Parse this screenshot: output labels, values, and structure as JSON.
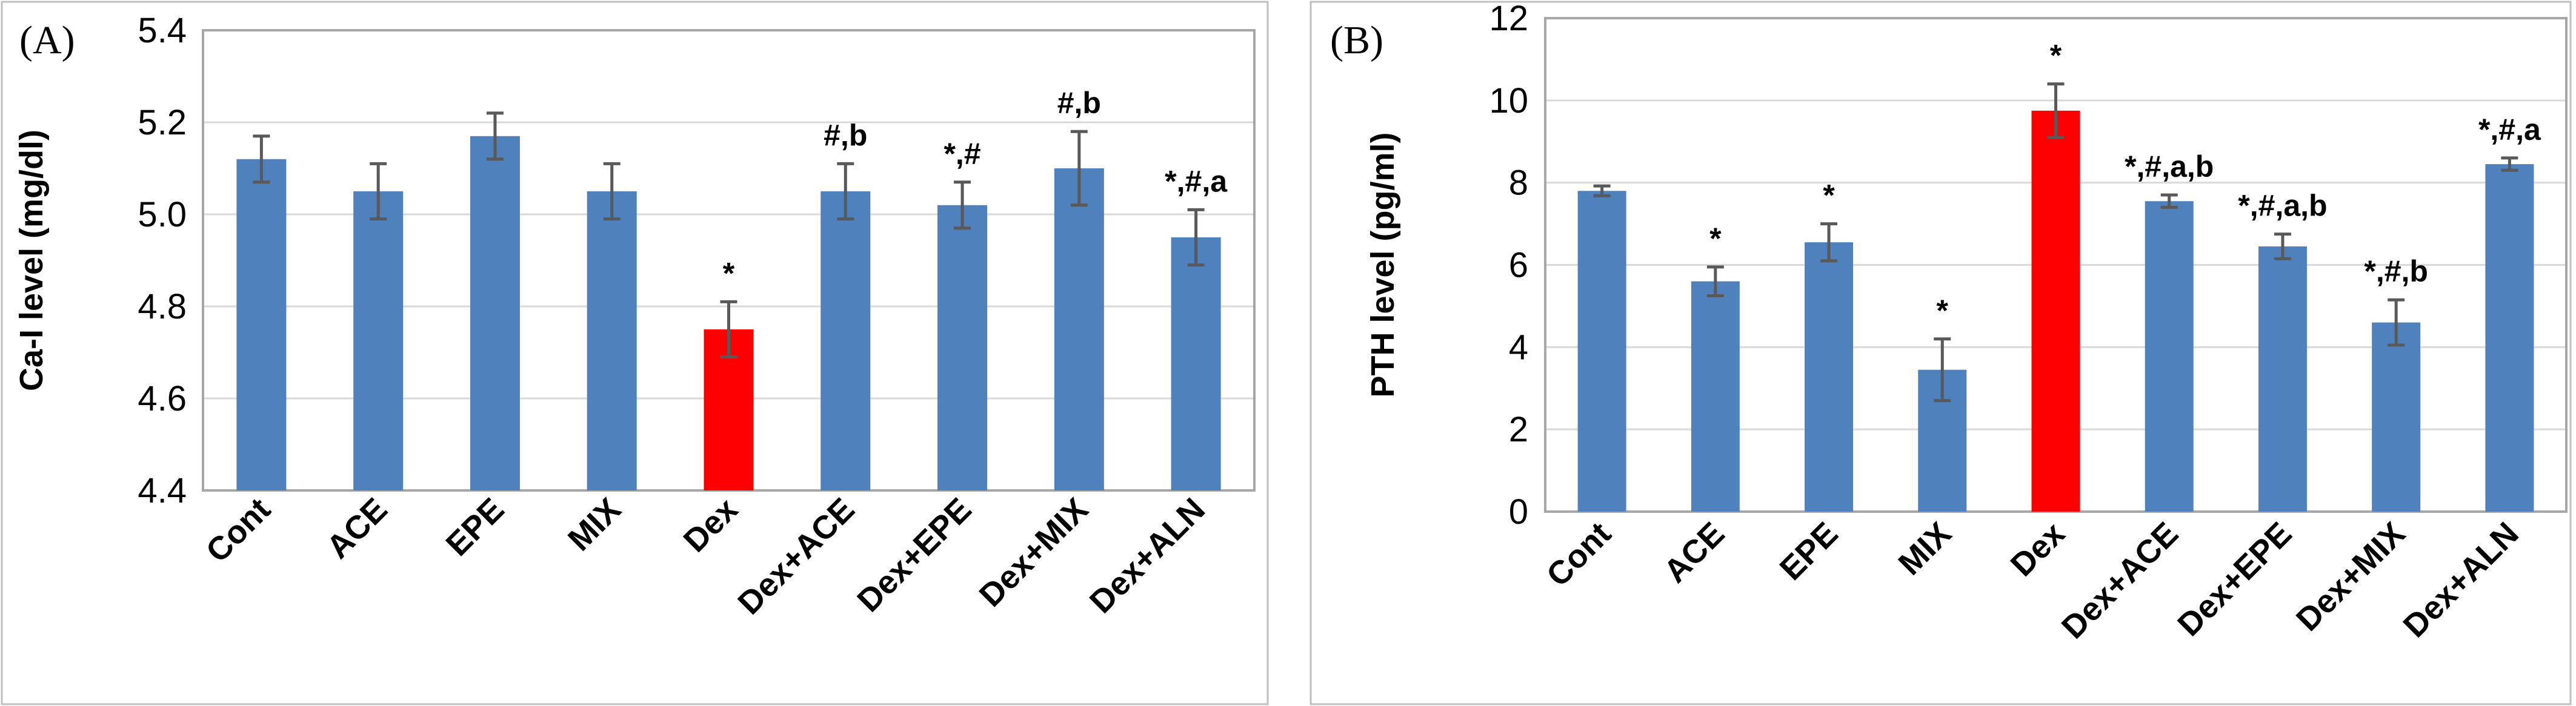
{
  "chart_data": [
    {
      "type": "bar",
      "panel_label": "(A)",
      "ylabel": "Ca-I level (mg/dl)",
      "ylim": [
        4.4,
        5.4
      ],
      "ytick_step": 0.2,
      "ytick_decimals": 1,
      "categories": [
        "Cont",
        "ACE",
        "EPE",
        "MIX",
        "Dex",
        "Dex+ACE",
        "Dex+EPE",
        "Dex+MIX",
        "Dex+ALN"
      ],
      "values": [
        5.12,
        5.05,
        5.17,
        5.05,
        4.75,
        5.05,
        5.02,
        5.1,
        4.95
      ],
      "errors": [
        0.05,
        0.06,
        0.05,
        0.06,
        0.06,
        0.06,
        0.05,
        0.08,
        0.06
      ],
      "annotations": [
        "",
        "",
        "",
        "",
        "*",
        "#,b",
        "*,#",
        "#,b",
        "*,#,a"
      ],
      "bar_colors": [
        "#4f81bd",
        "#4f81bd",
        "#4f81bd",
        "#4f81bd",
        "#ff0000",
        "#4f81bd",
        "#4f81bd",
        "#4f81bd",
        "#4f81bd"
      ]
    },
    {
      "type": "bar",
      "panel_label": "(B)",
      "ylabel": "PTH level (pg/ml)",
      "ylim": [
        0,
        12
      ],
      "ytick_step": 2,
      "ytick_decimals": 0,
      "categories": [
        "Cont",
        "ACE",
        "EPE",
        "MIX",
        "Dex",
        "Dex+ACE",
        "Dex+EPE",
        "Dex+MIX",
        "Dex+ALN"
      ],
      "values": [
        7.8,
        5.6,
        6.55,
        3.45,
        9.75,
        7.55,
        6.45,
        4.6,
        8.45
      ],
      "errors": [
        0.12,
        0.35,
        0.45,
        0.75,
        0.65,
        0.15,
        0.3,
        0.55,
        0.15
      ],
      "annotations": [
        "",
        "*",
        "*",
        "*",
        "*",
        "*,#,a,b",
        "*,#,a,b",
        "*,#,b",
        "*,#,a"
      ],
      "bar_colors": [
        "#4f81bd",
        "#4f81bd",
        "#4f81bd",
        "#4f81bd",
        "#ff0000",
        "#4f81bd",
        "#4f81bd",
        "#4f81bd",
        "#4f81bd"
      ]
    }
  ]
}
